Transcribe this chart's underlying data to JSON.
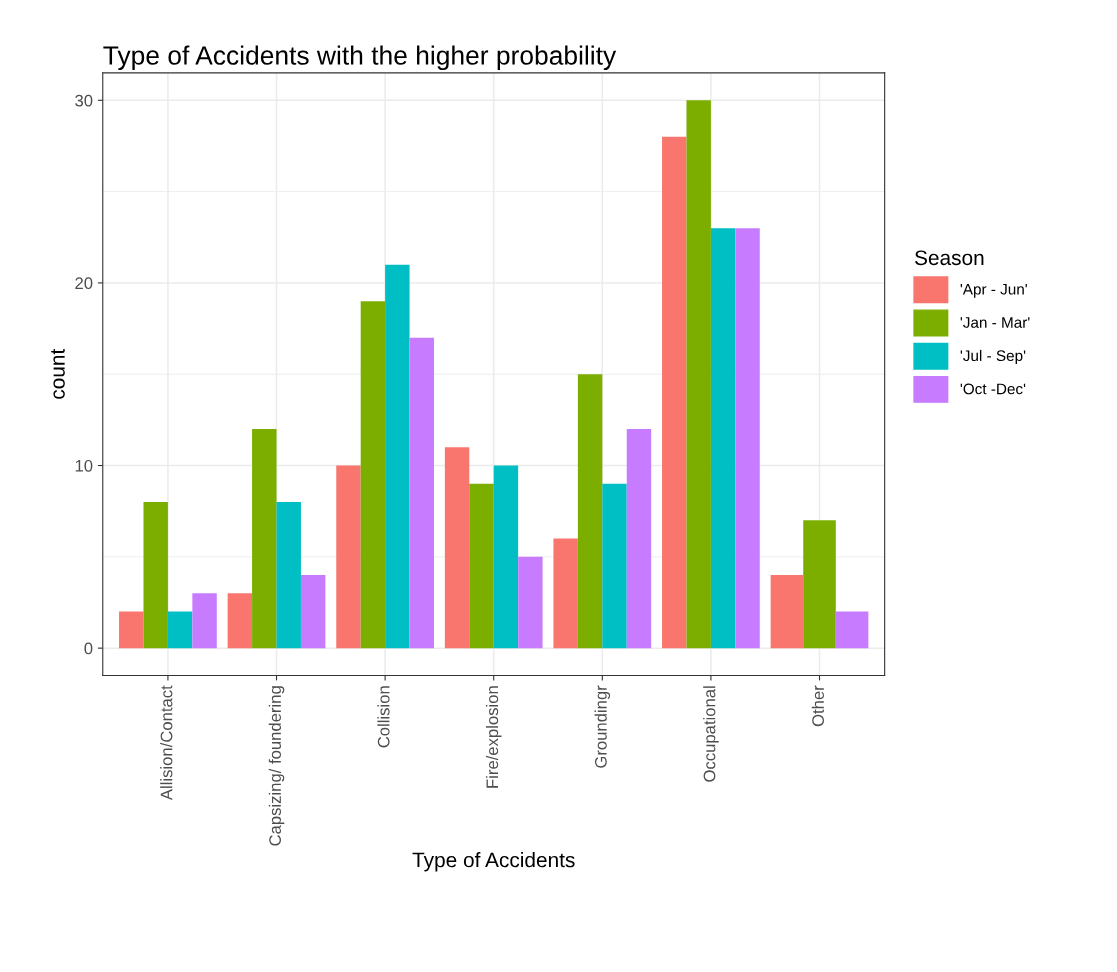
{
  "chart_data": {
    "type": "bar",
    "title": "Type of Accidents with the higher probability",
    "xlabel": "Type of Accidents",
    "ylabel": "count",
    "legend_title": "Season",
    "categories": [
      "Allision/Contact",
      "Capsizing/ foundering",
      "Collision",
      "Fire/explosion",
      "Groundingr",
      "Occupational",
      "Other"
    ],
    "series": [
      {
        "name": "'Apr - Jun'",
        "color": "#f8766d",
        "values": [
          2,
          3,
          10,
          11,
          6,
          28,
          4
        ]
      },
      {
        "name": "'Jan - Mar'",
        "color": "#7cae00",
        "values": [
          8,
          12,
          19,
          9,
          15,
          30,
          7
        ]
      },
      {
        "name": "'Jul - Sep'",
        "color": "#00bfc4",
        "values": [
          2,
          8,
          21,
          10,
          9,
          23,
          null
        ]
      },
      {
        "name": "'Oct -Dec'",
        "color": "#c77cff",
        "values": [
          3,
          4,
          17,
          5,
          12,
          23,
          2
        ]
      }
    ],
    "ylim": [
      -1.5,
      31.5
    ],
    "yticks": [
      0,
      10,
      20,
      30
    ],
    "grid": true,
    "legend": "right"
  }
}
